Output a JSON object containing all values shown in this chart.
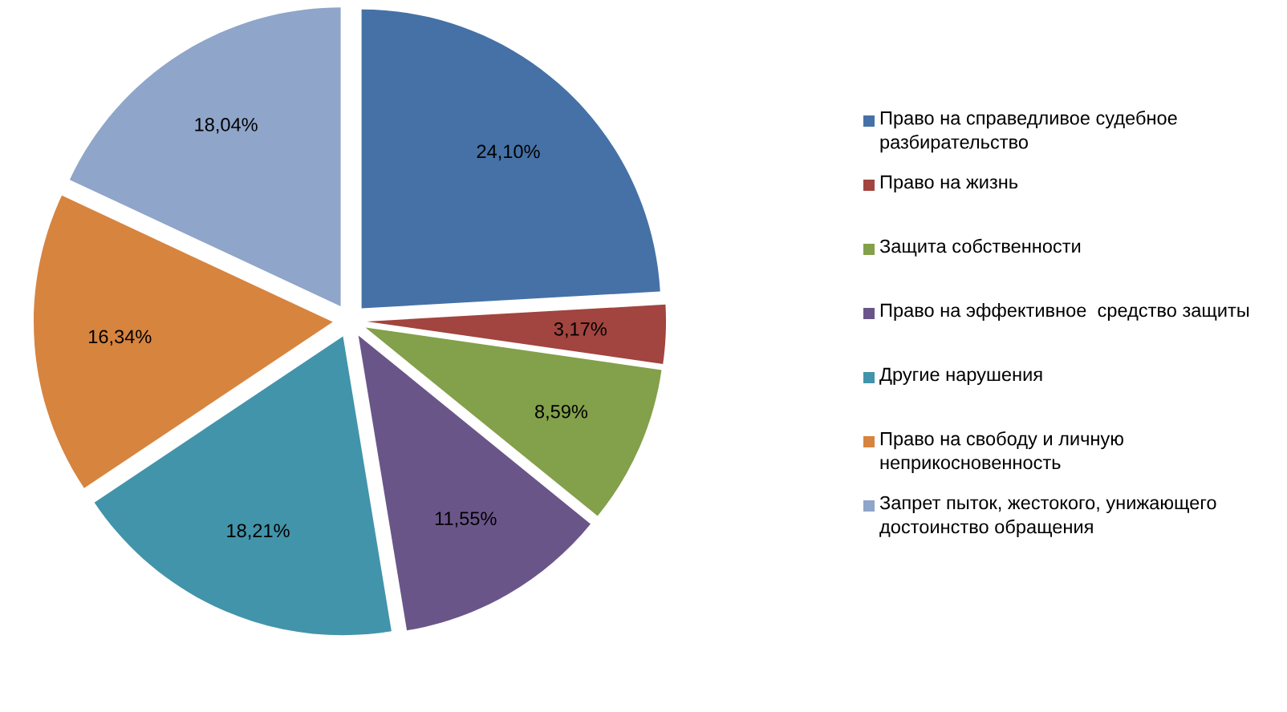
{
  "chart_data": {
    "type": "pie",
    "categories": [
      "Право на справедливое судебное разбирательство",
      "Право на жизнь",
      "Защита собственности",
      "Право на эффективное  средство защиты",
      "Другие нарушения",
      "Право на свободу и личную неприкосновенность",
      "Запрет пыток, жестокого, унижающего достоинство обращения"
    ],
    "values": [
      24.1,
      3.17,
      8.59,
      11.55,
      18.21,
      16.34,
      18.04
    ],
    "colors": [
      "#4571a6",
      "#a2443f",
      "#83a04a",
      "#6a5589",
      "#4294aa",
      "#d7843f",
      "#8fa5c9"
    ],
    "value_labels": [
      "24,10%",
      "3,17%",
      "8,59%",
      "11,55%",
      "18,21%",
      "16,34%",
      "18,04%"
    ],
    "legend": "right"
  }
}
